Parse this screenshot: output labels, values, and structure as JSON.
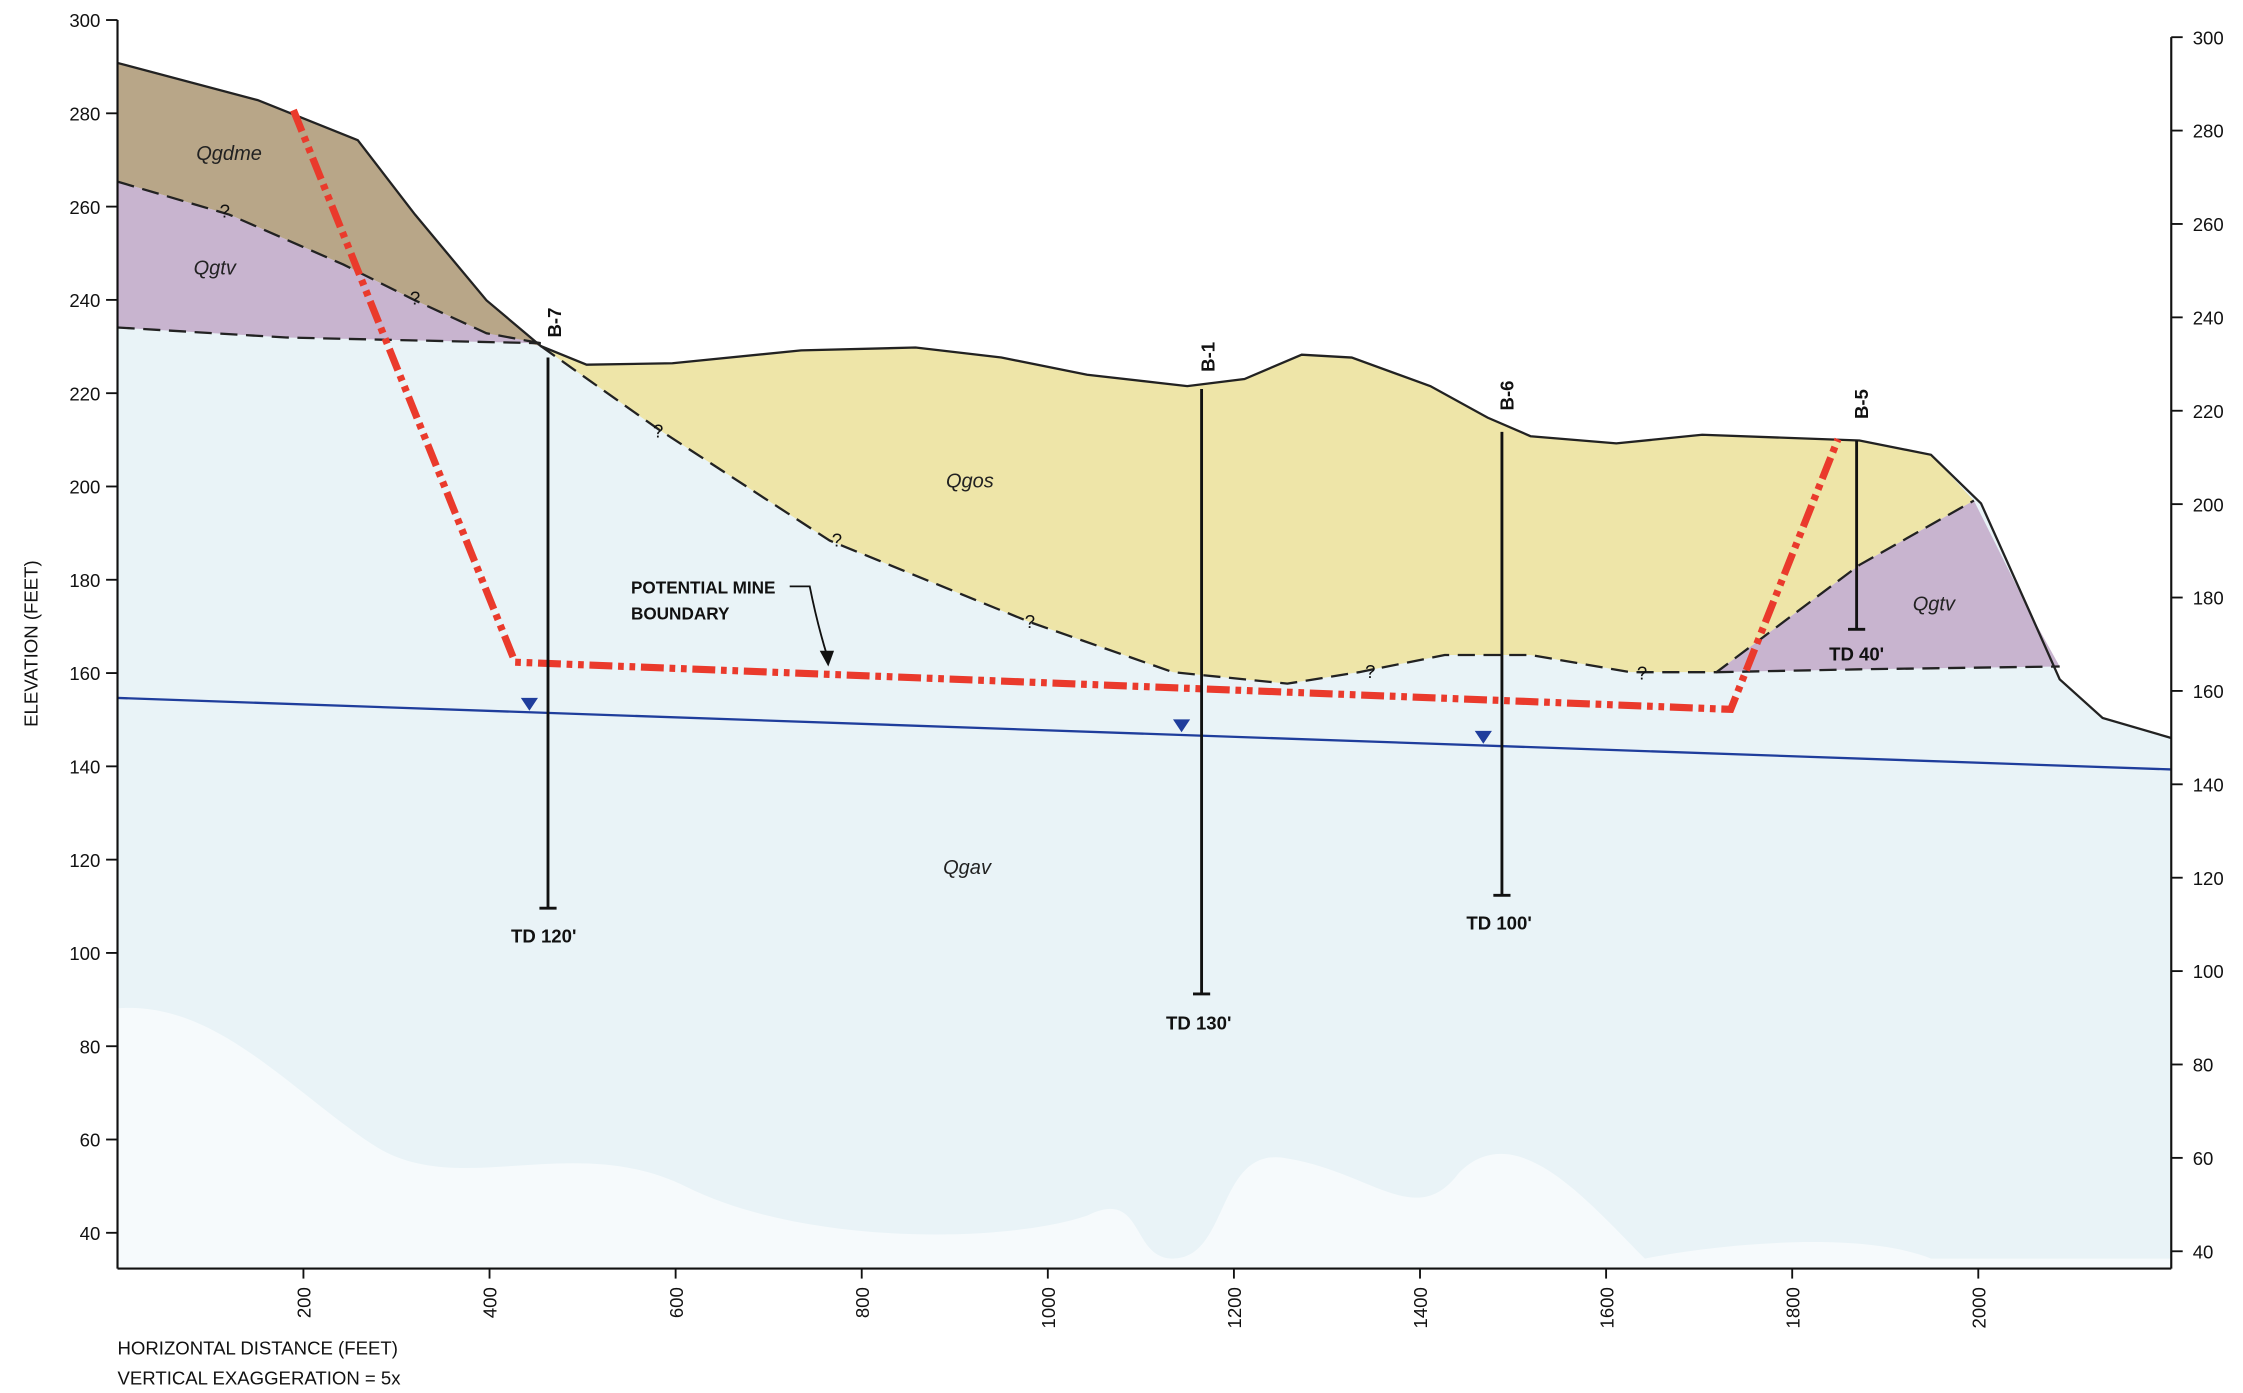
{
  "left_axis": {
    "label": "ELEVATION (FEET)",
    "ticks": [
      300,
      280,
      260,
      240,
      220,
      200,
      180,
      160,
      140,
      120,
      100,
      80,
      60,
      40
    ]
  },
  "right_axis": {
    "ticks": [
      300,
      280,
      260,
      240,
      220,
      200,
      180,
      160,
      140,
      120,
      100,
      80,
      60,
      40
    ]
  },
  "bottom_axis": {
    "ticks": [
      200,
      400,
      600,
      800,
      1000,
      1200,
      1400,
      1600,
      1800,
      2000
    ],
    "label": "HORIZONTAL DISTANCE  (FEET)",
    "note": "VERTICAL EXAGGERATION = 5x"
  },
  "units": [
    "Qgdme",
    "Qgtv",
    "Qgos",
    "Qgav",
    "Qgtv"
  ],
  "borings": [
    {
      "name": "B-7",
      "depth_label": "TD 120'"
    },
    {
      "name": "B-1",
      "depth_label": "TD 130'"
    },
    {
      "name": "B-6",
      "depth_label": "TD 100'"
    },
    {
      "name": "B-5",
      "depth_label": "TD 40'"
    }
  ],
  "annotation": [
    "POTENTIAL MINE",
    "BOUNDARY"
  ],
  "uncertain_marks": [
    "?",
    "?",
    "?",
    "?",
    "?",
    "?",
    "?"
  ]
}
